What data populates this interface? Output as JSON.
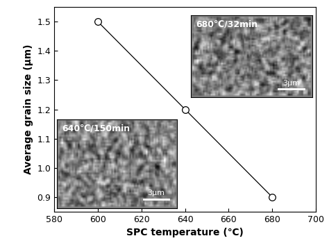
{
  "chart_data": {
    "type": "line",
    "x": [
      600,
      640,
      680
    ],
    "values": [
      1.5,
      1.2,
      0.9
    ],
    "x_label": "SPC temperature (℃)",
    "y_label": "Average grain size (μm)",
    "xlim": [
      580,
      700
    ],
    "xticks": [
      580,
      600,
      620,
      640,
      660,
      680,
      700
    ],
    "ylim": [
      0.85,
      1.55
    ],
    "yticks": [
      0.9,
      1.0,
      1.1,
      1.2,
      1.3,
      1.4,
      1.5
    ],
    "color": "#000000",
    "marker": "circle",
    "line_style": "solid",
    "grid": false,
    "insets": [
      {
        "label": "680℃/32min",
        "scale_bar": "3μm"
      },
      {
        "label": "640℃/150min",
        "scale_bar": "3μm"
      }
    ]
  }
}
